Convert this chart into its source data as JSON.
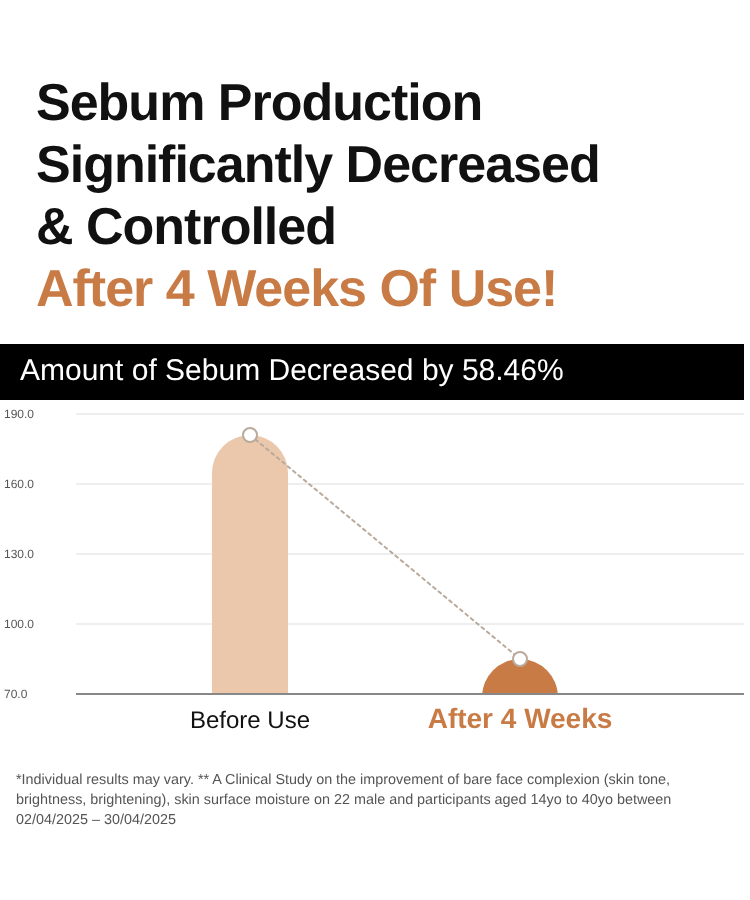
{
  "chart_data": {
    "type": "bar",
    "title": "Sebum Production Significantly Decreased & Controlled",
    "subtitle": "After 4 Weeks Of Use!",
    "annotations": [
      "Amount of Sebum Decreased by 58.46%",
      "*Individual results may vary. ** A Clinical Study on the improvement of bare face complexion (skin tone, brightness, brightening), skin surface moisture on 22 male and participants aged 14yo to 40yo between 02/04/2025 – 30/04/2025"
    ],
    "categories": [
      "Before Use",
      "After 4 Weeks"
    ],
    "series": [
      {
        "type": "bar",
        "colors": [
          "#ebc8ac",
          "#c97b45"
        ],
        "values": [
          181,
          85
        ]
      },
      {
        "type": "line",
        "color": "#b9aa9c",
        "values": [
          181,
          85
        ]
      }
    ],
    "marker": "circle",
    "line_style": "dotted",
    "grid": "y",
    "ylim": [
      70,
      190
    ],
    "yticks": [
      {
        "value": 70,
        "label": "70.0"
      },
      {
        "value": 100,
        "label": "100.0"
      },
      {
        "value": 130,
        "label": "130.0"
      },
      {
        "value": 160,
        "label": "160.0"
      },
      {
        "value": 190,
        "label": "190.0"
      }
    ]
  }
}
